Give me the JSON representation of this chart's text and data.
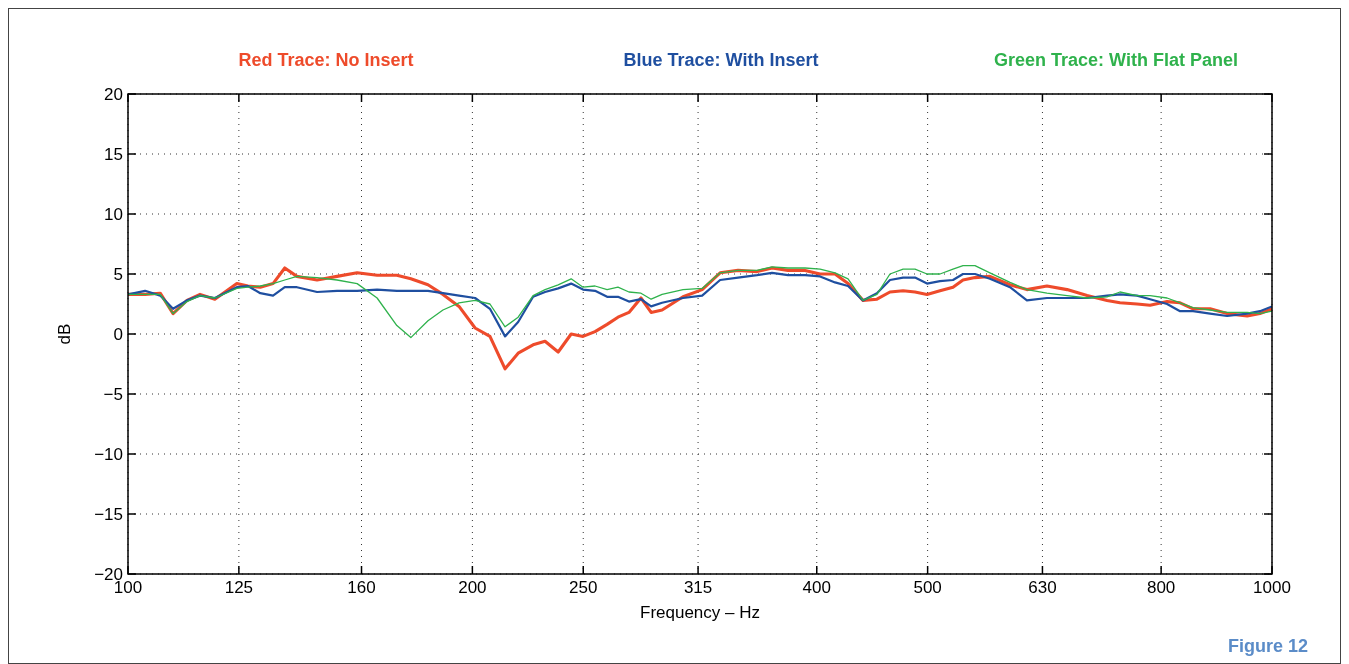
{
  "chart_data": {
    "type": "line",
    "xlabel": "Frequency – Hz",
    "ylabel": "dB",
    "log": "x",
    "grid": true,
    "legend": "top",
    "marker": "none",
    "line_style": "solid",
    "x": [
      100,
      103.5,
      106.7,
      109.5,
      112.6,
      115.6,
      119.1,
      124.5,
      127.3,
      130.5,
      133.9,
      137.1,
      140.5,
      146.3,
      152.3,
      158.6,
      165.1,
      171.8,
      176.7,
      182.9,
      188.5,
      194.7,
      201.1,
      207.2,
      213.6,
      219.3,
      226,
      231.5,
      237.7,
      244,
      249.9,
      256,
      262.3,
      268.1,
      274.1,
      280.8,
      286.6,
      293,
      305.6,
      317.6,
      329.3,
      341.4,
      354.7,
      365.6,
      377.5,
      390.7,
      402.7,
      415,
      426,
      439,
      451.5,
      463.5,
      475.9,
      487.5,
      499.4,
      512.6,
      526.2,
      536.9,
      550,
      566.8,
      590.2,
      610.6,
      635.7,
      662,
      689.2,
      717.5,
      736.4,
      762.1,
      782.4,
      809.6,
      831.1,
      853.1,
      882.9,
      913.7,
      951.3,
      976.1,
      1000
    ],
    "xlim": [
      100,
      1000
    ],
    "xticks": [
      100,
      125,
      160,
      200,
      250,
      315,
      400,
      500,
      630,
      800,
      1000
    ],
    "ylim": [
      -20,
      20
    ],
    "yticks": [
      {
        "value": -20,
        "label": "−20"
      },
      {
        "value": -15,
        "label": "−15"
      },
      {
        "value": -10,
        "label": "−10"
      },
      {
        "value": -5,
        "label": "−5"
      },
      0,
      5,
      10,
      15,
      20
    ],
    "series": [
      {
        "name": "Red Trace: No Insert",
        "color": "#ee4b2b",
        "values": [
          3.3,
          3.3,
          3.4,
          1.7,
          2.8,
          3.3,
          2.9,
          4.2,
          4.0,
          3.9,
          4.2,
          5.5,
          4.8,
          4.5,
          4.8,
          5.1,
          4.9,
          4.9,
          4.6,
          4.1,
          3.3,
          2.3,
          0.5,
          -0.2,
          -2.9,
          -1.6,
          -0.9,
          -0.6,
          -1.5,
          0.0,
          -0.2,
          0.2,
          0.8,
          1.4,
          1.8,
          3.0,
          1.8,
          2.0,
          3.1,
          3.7,
          5.1,
          5.3,
          5.2,
          5.5,
          5.3,
          5.3,
          5.0,
          5.0,
          4.2,
          2.8,
          2.9,
          3.5,
          3.6,
          3.5,
          3.3,
          3.6,
          3.9,
          4.5,
          4.7,
          4.8,
          4.1,
          3.7,
          4.0,
          3.7,
          3.2,
          2.8,
          2.6,
          2.5,
          2.4,
          2.7,
          2.6,
          2.1,
          2.1,
          1.7,
          1.5,
          1.7,
          2.1
        ]
      },
      {
        "name": "Blue Trace: With Insert",
        "color": "#1f4fa0",
        "values": [
          3.3,
          3.6,
          3.2,
          2.1,
          2.8,
          3.2,
          3.0,
          3.9,
          4.0,
          3.4,
          3.2,
          3.9,
          3.9,
          3.5,
          3.6,
          3.6,
          3.7,
          3.6,
          3.6,
          3.6,
          3.4,
          3.2,
          3.0,
          2.1,
          -0.2,
          1.0,
          3.1,
          3.5,
          3.8,
          4.2,
          3.7,
          3.6,
          3.1,
          3.1,
          2.7,
          2.9,
          2.3,
          2.6,
          3.0,
          3.2,
          4.5,
          4.7,
          4.9,
          5.1,
          4.9,
          4.9,
          4.8,
          4.3,
          4.0,
          2.8,
          3.4,
          4.5,
          4.7,
          4.7,
          4.2,
          4.4,
          4.5,
          5.0,
          5.0,
          4.6,
          3.9,
          2.8,
          3.0,
          3.0,
          3.0,
          3.2,
          3.3,
          3.2,
          2.9,
          2.5,
          1.9,
          1.9,
          1.7,
          1.5,
          1.7,
          1.9,
          2.3
        ]
      },
      {
        "name": "Green Trace: With Flat Panel",
        "color": "#2fb24c",
        "values": [
          3.3,
          3.3,
          3.3,
          1.7,
          2.7,
          3.2,
          3.0,
          3.8,
          3.9,
          4.0,
          4.2,
          4.5,
          4.8,
          4.7,
          4.5,
          4.2,
          3.0,
          0.7,
          -0.3,
          1.1,
          2.0,
          2.6,
          2.8,
          2.5,
          0.6,
          1.4,
          3.2,
          3.7,
          4.1,
          4.6,
          3.9,
          4.0,
          3.7,
          3.9,
          3.5,
          3.4,
          2.9,
          3.3,
          3.7,
          3.8,
          5.1,
          5.3,
          5.3,
          5.6,
          5.5,
          5.5,
          5.4,
          5.1,
          4.6,
          2.8,
          3.3,
          5.0,
          5.4,
          5.4,
          5.0,
          5.0,
          5.4,
          5.7,
          5.7,
          5.1,
          4.3,
          3.7,
          3.4,
          3.2,
          3.0,
          3.1,
          3.5,
          3.2,
          3.2,
          3.0,
          2.6,
          2.2,
          2.0,
          1.8,
          1.8,
          1.7,
          1.9
        ]
      }
    ],
    "annotations": [
      "Figure 12"
    ]
  }
}
